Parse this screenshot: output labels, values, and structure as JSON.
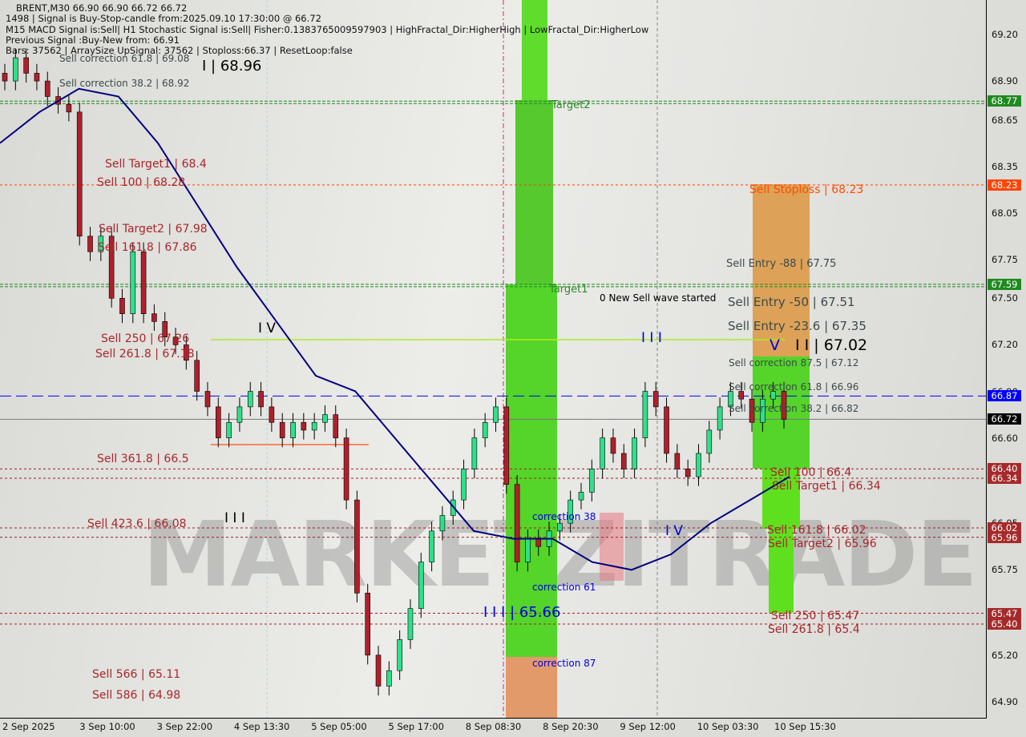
{
  "header": {
    "line1": "BRENT,M30  66.90 66.90 66.72 66.72",
    "line2": "1498 | Signal is Buy-Stop-candle from:2025.09.10 17:30:00 @ 66.72",
    "line3": "M15 MACD Signal is:Sell| H1 Stochastic Signal is:Sell| Fisher:0.1383765009597903 | HighFractal_Dir:HigherHigh | LowFractal_Dir:HigherLow",
    "line4": "Previous Signal :Buy-New from: 66.91",
    "line5": "Bars: 37562 | ArraySize UpSignal: 37562 | Stoploss:66.37 | ResetLoop:false"
  },
  "watermark": "MARKETZITRADE",
  "colors": {
    "bull": "#2ee08a",
    "bear": "#b0202a",
    "ma": "#00007f",
    "green_zone": "#55d42a",
    "orange_zone": "#e39a5c",
    "level_red": "#a02020",
    "level_green": "#1f8a1f",
    "stoploss": "#ff4500",
    "current": "#000000",
    "signal_blue": "#0000ff"
  },
  "chart_data": {
    "type": "candlestick",
    "symbol": "BRENT",
    "timeframe": "M30",
    "ylim": [
      64.78,
      69.42
    ],
    "y_ticks": [
      "69.20",
      "68.90",
      "68.65",
      "68.35",
      "68.05",
      "67.75",
      "67.50",
      "67.20",
      "66.90",
      "66.60",
      "66.05",
      "65.75",
      "65.20",
      "64.90"
    ],
    "x_ticks": [
      "2 Sep 2025",
      "3 Sep 10:00",
      "3 Sep 22:00",
      "4 Sep 13:30",
      "5 Sep 05:00",
      "5 Sep 17:00",
      "8 Sep 08:30",
      "8 Sep 20:30",
      "9 Sep 12:00",
      "10 Sep 03:30",
      "10 Sep 15:30"
    ],
    "closes": [
      68.9,
      69.05,
      68.95,
      68.9,
      68.8,
      68.75,
      68.7,
      67.9,
      67.8,
      67.9,
      67.5,
      67.4,
      67.8,
      67.4,
      67.35,
      67.25,
      67.2,
      67.1,
      66.9,
      66.8,
      66.6,
      66.7,
      66.8,
      66.9,
      66.8,
      66.7,
      66.6,
      66.7,
      66.65,
      66.7,
      66.75,
      66.6,
      66.2,
      65.6,
      65.2,
      65.0,
      65.1,
      65.3,
      65.5,
      65.8,
      66.0,
      66.1,
      66.2,
      66.4,
      66.6,
      66.7,
      66.8,
      66.3,
      65.8,
      65.95,
      65.9,
      66.0,
      66.05,
      66.2,
      66.25,
      66.4,
      66.6,
      66.5,
      66.4,
      66.6,
      66.9,
      66.8,
      66.5,
      66.4,
      66.35,
      66.5,
      66.65,
      66.8,
      66.9,
      66.85,
      66.7,
      66.85,
      66.9,
      66.72
    ],
    "moving_average": [
      68.5,
      68.7,
      68.85,
      68.8,
      68.5,
      68.1,
      67.7,
      67.35,
      67.0,
      66.9,
      66.6,
      66.3,
      66.0,
      65.95,
      65.95,
      65.8,
      65.75,
      65.85,
      66.05,
      66.2,
      66.35
    ],
    "levels": [
      {
        "price": 68.77,
        "label": "68.77",
        "color": "#1f8a1f",
        "style": "double-dash"
      },
      {
        "price": 68.23,
        "label": "68.23",
        "color": "#ff4500",
        "style": "dash"
      },
      {
        "price": 67.59,
        "label": "67.59",
        "color": "#1f8a1f",
        "style": "double-dash"
      },
      {
        "price": 66.87,
        "label": "66.87",
        "color": "#0000ff",
        "style": "longdash"
      },
      {
        "price": 66.72,
        "label": "66.72",
        "color": "#000000",
        "style": "solid"
      },
      {
        "price": 66.4,
        "label": "66.40",
        "color": "#a02020",
        "style": "dash"
      },
      {
        "price": 66.34,
        "label": "66.34",
        "color": "#a02020",
        "style": "dash"
      },
      {
        "price": 66.02,
        "label": "66.02",
        "color": "#a02020",
        "style": "dash"
      },
      {
        "price": 65.96,
        "label": "65.96",
        "color": "#a02020",
        "style": "dash"
      },
      {
        "price": 65.47,
        "label": "65.47",
        "color": "#a02020",
        "style": "dash"
      },
      {
        "price": 65.4,
        "label": "65.40",
        "color": "#a02020",
        "style": "dash"
      }
    ],
    "annotations": {
      "left": [
        "Sell correction 61.8 | 69.08",
        "Sell correction 38.2 | 68.92",
        "I | 68.96",
        "Sell Target1 | 68.4",
        "Sell 100 | 68.28",
        "Sell Target2 | 67.98",
        "Sell 161.8 | 67.86",
        "Sell  250 | 67.26",
        "Sell  261.8 | 67.18",
        "I V",
        "Sell  361.8 | 66.5",
        "I I I",
        "Sell  423.6 | 66.08",
        "Sell  566 | 65.11",
        "Sell  586 | 64.98"
      ],
      "middle": [
        "Target2",
        "Target1",
        "0 New Sell wave started",
        "I I I",
        "correction 38",
        "correction 61",
        "correction 87",
        "I I I | 65.66",
        "I V"
      ],
      "right": [
        "Sell Stoploss | 68.23",
        "Sell Entry -88 | 67.75",
        "Sell Entry -50 | 67.51",
        "Sell Entry -23.6 | 67.35",
        "I I | 67.02",
        "V",
        "Sell correction 87.5 | 67.12",
        "Sell correction 61.8 | 66.96",
        "Sell correction 38.2 | 66.82",
        "Sell 100 | 66.4",
        "Sell Target1 | 66.34",
        "Sell 161.8 | 66.02",
        "Sell Target2 | 65.96",
        "Sell  250 | 65.47",
        "Sell  261.8 | 65.4"
      ]
    }
  }
}
